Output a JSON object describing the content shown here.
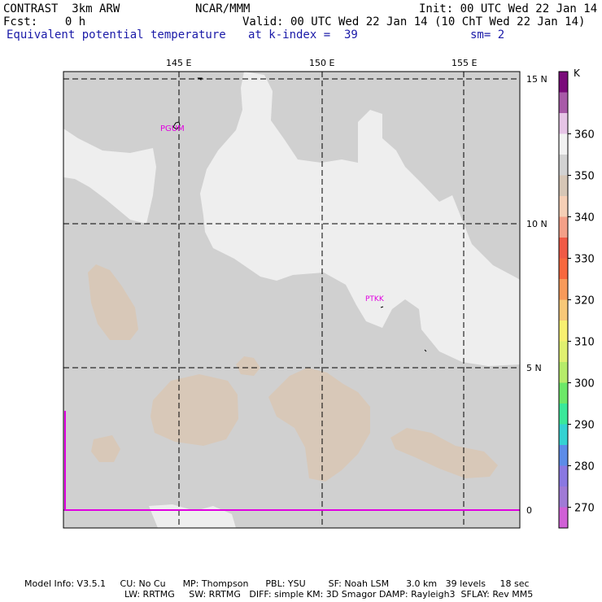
{
  "header": {
    "model": "CONTRAST  3km ARW",
    "org": "NCAR/MMM",
    "init": "Init: 00 UTC Wed 22 Jan 14",
    "fcst": "Fcst:    0 h",
    "valid": "Valid: 00 UTC Wed 22 Jan 14 (10 ChT Wed 22 Jan 14)",
    "field": "Equivalent potential temperature",
    "level": "at k-index =  39",
    "smooth": "sm= 2"
  },
  "map": {
    "lon_labels": [
      "145 E",
      "150 E",
      "155 E"
    ],
    "lat_labels": [
      "15 N",
      "10 N",
      "5 N",
      "0"
    ],
    "stations": [
      {
        "id": "PGUM",
        "lon": 144.8,
        "lat": 13.5
      },
      {
        "id": "PTKK",
        "lon": 151.85,
        "lat": 7.45
      }
    ],
    "colors": {
      "base_350": "#d0d0d0",
      "warm_345": "#d8c8b8",
      "white_355": "#eeeeee",
      "station": "#e000e0",
      "grid": "#000000"
    }
  },
  "colorbar": {
    "unit": "K",
    "tick_labels": [
      "360",
      "350",
      "340",
      "330",
      "320",
      "310",
      "300",
      "290",
      "280",
      "270"
    ],
    "swatches": [
      "#7a0a7a",
      "#a85aa8",
      "#e6c4e6",
      "#f2f2f2",
      "#d2d2d2",
      "#d6c6b6",
      "#f6cfb6",
      "#f4a088",
      "#f05a46",
      "#f8683e",
      "#f89a5a",
      "#f8c878",
      "#f8f070",
      "#e0f070",
      "#b6ec6a",
      "#6ce868",
      "#3ae89a",
      "#34d2d2",
      "#5c8ce8",
      "#8a78e2",
      "#a07ad6",
      "#d060d6"
    ]
  },
  "footer": {
    "line1": "Model Info: V3.5.1     CU: No Cu      MP: Thompson      PBL: YSU        SF: Noah LSM      3.0 km   39 levels     18 sec",
    "line2": "LW: RRTMG     SW: RRTMG   DIFF: simple KM: 3D Smagor DAMP: Rayleigh3  SFLAY: Rev MM5"
  }
}
